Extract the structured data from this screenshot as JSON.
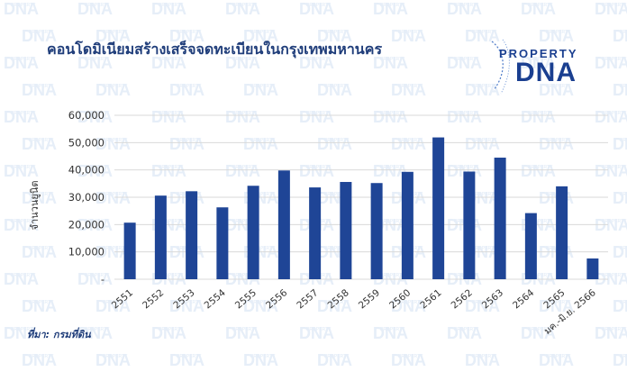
{
  "watermark": {
    "top": "PROPERTY",
    "main": "DNA"
  },
  "logo": {
    "top": "PROPERTY",
    "main": "DNA"
  },
  "source_text": "ที่มา: กรมที่ดิน",
  "colors": {
    "bar": "#1f4596",
    "grid": "#d9d9d9",
    "title": "#1f3d7a",
    "watermark": "#e6eef8"
  },
  "chart_data": {
    "type": "bar",
    "title": "คอนโดมิเนียมสร้างเสร็จจดทะเบียนในกรุงเทพมหานคร",
    "xlabel": "",
    "ylabel": "จำนวนยูนิต",
    "ylim": [
      0,
      60000
    ],
    "yticks": [
      "-",
      "10,000",
      "20,000",
      "30,000",
      "40,000",
      "50,000",
      "60,000"
    ],
    "grid": true,
    "legend": "none",
    "categories": [
      "2551",
      "2552",
      "2553",
      "2554",
      "2555",
      "2556",
      "2557",
      "2558",
      "2559",
      "2560",
      "2561",
      "2562",
      "2563",
      "2564",
      "2565",
      "มค.-มิ.ย. 2566"
    ],
    "values": [
      20700,
      30600,
      32200,
      26300,
      34200,
      39800,
      33600,
      35600,
      35200,
      39300,
      51900,
      39400,
      44500,
      24200,
      34000,
      7600
    ]
  }
}
